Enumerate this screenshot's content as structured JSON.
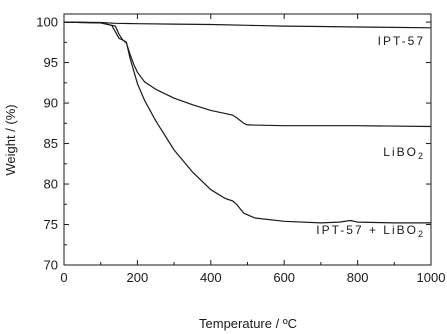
{
  "chart_data": {
    "type": "line",
    "title": "",
    "xlabel": "Temperature  / ºC",
    "ylabel": "Weight / (%)",
    "xlim": [
      0,
      1000
    ],
    "ylim": [
      70,
      101
    ],
    "x_ticks": [
      0,
      200,
      400,
      600,
      800,
      1000
    ],
    "y_ticks": [
      70,
      75,
      80,
      85,
      90,
      95,
      100
    ],
    "grid": false,
    "legend": "none",
    "line_color": "#1a1a1a",
    "series": [
      {
        "label": "IPT-57",
        "label_parts": [
          {
            "text": "IPT-57",
            "sub": false
          }
        ],
        "points": [
          [
            0,
            100
          ],
          [
            100,
            99.95
          ],
          [
            140,
            99.85
          ],
          [
            200,
            99.8
          ],
          [
            300,
            99.75
          ],
          [
            400,
            99.7
          ],
          [
            500,
            99.6
          ],
          [
            600,
            99.5
          ],
          [
            700,
            99.45
          ],
          [
            800,
            99.4
          ],
          [
            900,
            99.35
          ],
          [
            1000,
            99.3
          ]
        ]
      },
      {
        "label": "LiBO2",
        "label_parts": [
          {
            "text": "LiBO",
            "sub": false
          },
          {
            "text": "2",
            "sub": true
          }
        ],
        "points": [
          [
            0,
            100
          ],
          [
            100,
            99.9
          ],
          [
            140,
            99.5
          ],
          [
            150,
            98.5
          ],
          [
            160,
            97.8
          ],
          [
            170,
            97.4
          ],
          [
            180,
            96
          ],
          [
            190,
            94.8
          ],
          [
            200,
            93.8
          ],
          [
            220,
            92.6
          ],
          [
            250,
            91.7
          ],
          [
            300,
            90.6
          ],
          [
            350,
            89.8
          ],
          [
            400,
            89.1
          ],
          [
            440,
            88.7
          ],
          [
            460,
            88.5
          ],
          [
            470,
            88.2
          ],
          [
            490,
            87.5
          ],
          [
            500,
            87.3
          ],
          [
            600,
            87.2
          ],
          [
            800,
            87.2
          ],
          [
            1000,
            87.1
          ]
        ]
      },
      {
        "label": "IPT-57 + LiBO2",
        "label_parts": [
          {
            "text": "IPT-57 + LiBO",
            "sub": false
          },
          {
            "text": "2",
            "sub": true
          }
        ],
        "points": [
          [
            0,
            100
          ],
          [
            100,
            99.9
          ],
          [
            130,
            99.6
          ],
          [
            140,
            98.8
          ],
          [
            150,
            98
          ],
          [
            160,
            97.8
          ],
          [
            170,
            97.5
          ],
          [
            180,
            95.5
          ],
          [
            190,
            94
          ],
          [
            200,
            92.4
          ],
          [
            220,
            90.3
          ],
          [
            250,
            87.8
          ],
          [
            300,
            84.2
          ],
          [
            350,
            81.5
          ],
          [
            400,
            79.3
          ],
          [
            440,
            78.2
          ],
          [
            460,
            77.9
          ],
          [
            470,
            77.5
          ],
          [
            490,
            76.4
          ],
          [
            520,
            75.8
          ],
          [
            600,
            75.4
          ],
          [
            700,
            75.2
          ],
          [
            750,
            75.3
          ],
          [
            780,
            75.5
          ],
          [
            800,
            75.3
          ],
          [
            900,
            75.2
          ],
          [
            1000,
            75.2
          ]
        ]
      }
    ]
  }
}
